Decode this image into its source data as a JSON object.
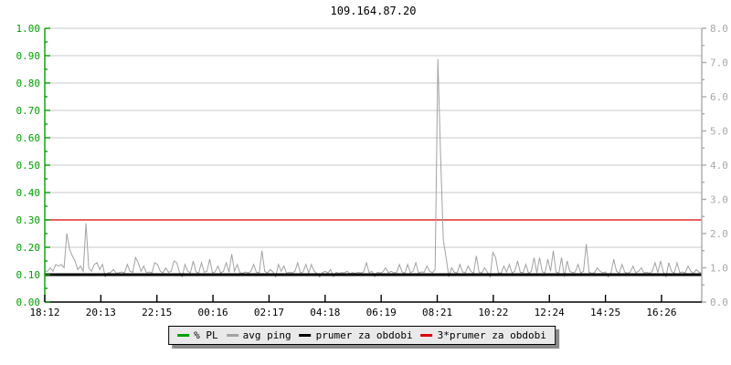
{
  "title": "109.164.87.20",
  "legend": {
    "items": [
      {
        "label": "% PL",
        "color": "#00a000"
      },
      {
        "label": "avg ping",
        "color": "#a2a2a2"
      },
      {
        "label": "prumer za obdobi",
        "color": "#000000"
      },
      {
        "label": "3*prumer za obdobi",
        "color": "#dd0000"
      }
    ]
  },
  "colors": {
    "grid": "#c8c8c8",
    "left_axis": "#00a000",
    "right_axis": "#aaaaaa",
    "right_labels": "#a8a8a8",
    "x_axis": "#000000",
    "background": "#ffffff"
  },
  "chart_data": {
    "type": "line",
    "title": "109.164.87.20",
    "grid": true,
    "legend_position": "bottom-center",
    "x_axis": {
      "tick_labels": [
        "18:12",
        "20:13",
        "22:15",
        "00:16",
        "02:17",
        "04:18",
        "06:19",
        "08:21",
        "10:22",
        "12:24",
        "14:25",
        "16:26"
      ]
    },
    "left_axis": {
      "series": "% PL",
      "min": 0,
      "max": 1,
      "tick_labels": [
        "1.00",
        "0.90",
        "0.80",
        "0.70",
        "0.60",
        "0.50",
        "0.40",
        "0.30",
        "0.20",
        "0.10",
        "0.00"
      ]
    },
    "right_axis": {
      "series": "avg ping",
      "min": 0,
      "max": 8,
      "tick_labels": [
        "8.0",
        "7.0",
        "6.0",
        "5.0",
        "4.0",
        "3.0",
        "2.0",
        "1.0",
        "0.0"
      ]
    },
    "series": [
      {
        "name": "% PL",
        "axis": "left",
        "color": "#00a000",
        "constant": 0
      },
      {
        "name": "avg ping",
        "axis": "right",
        "color": "#a2a2a2",
        "values": [
          0.9,
          0.9,
          1.0,
          0.9,
          1.1,
          1.05,
          1.1,
          1.0,
          2.0,
          1.55,
          1.35,
          1.2,
          0.95,
          1.05,
          0.9,
          2.3,
          1.0,
          0.9,
          1.1,
          1.15,
          0.95,
          1.1,
          0.74,
          0.85,
          0.87,
          0.95,
          0.84,
          0.86,
          0.88,
          0.85,
          1.1,
          0.9,
          0.87,
          1.3,
          1.15,
          0.9,
          1.05,
          0.86,
          0.88,
          0.85,
          1.15,
          1.1,
          0.9,
          0.86,
          1.0,
          0.87,
          0.9,
          1.2,
          1.15,
          0.88,
          0.74,
          1.1,
          0.9,
          0.86,
          1.2,
          0.88,
          0.85,
          1.15,
          0.87,
          0.9,
          1.25,
          0.86,
          0.88,
          1.05,
          0.85,
          0.9,
          1.15,
          0.87,
          1.4,
          0.9,
          1.1,
          0.86,
          0.84,
          0.88,
          0.85,
          0.9,
          1.1,
          0.87,
          0.86,
          1.5,
          0.9,
          0.85,
          0.95,
          0.88,
          0.74,
          1.1,
          0.9,
          1.05,
          0.84,
          0.87,
          0.85,
          0.9,
          1.15,
          0.86,
          0.88,
          1.1,
          0.85,
          1.1,
          0.9,
          0.84,
          0.73,
          0.86,
          0.9,
          0.85,
          0.95,
          0.74,
          0.87,
          0.84,
          0.86,
          0.85,
          0.9,
          0.83,
          0.86,
          0.84,
          0.87,
          0.85,
          0.88,
          1.15,
          0.86,
          0.9,
          0.74,
          0.87,
          0.85,
          0.88,
          1.0,
          0.86,
          0.9,
          0.85,
          0.87,
          1.1,
          0.88,
          0.84,
          1.1,
          0.86,
          0.9,
          1.15,
          0.85,
          0.88,
          0.87,
          1.05,
          0.9,
          0.86,
          0.95,
          7.1,
          4.25,
          1.8,
          1.3,
          0.74,
          1.0,
          0.87,
          0.85,
          1.1,
          0.88,
          0.86,
          1.05,
          0.9,
          0.84,
          1.35,
          0.87,
          0.85,
          1.0,
          0.88,
          0.74,
          1.45,
          1.3,
          0.86,
          0.84,
          1.05,
          0.88,
          1.1,
          0.85,
          0.9,
          1.2,
          0.87,
          0.86,
          1.1,
          0.84,
          0.9,
          1.3,
          0.85,
          1.3,
          0.88,
          0.86,
          1.25,
          0.9,
          1.5,
          0.87,
          0.85,
          1.3,
          0.74,
          1.2,
          0.9,
          0.86,
          0.88,
          1.1,
          0.85,
          0.9,
          1.7,
          0.87,
          0.84,
          0.86,
          1.0,
          0.9,
          0.85,
          0.88,
          0.74,
          0.86,
          1.25,
          0.9,
          0.85,
          1.1,
          0.87,
          0.84,
          0.88,
          1.05,
          0.86,
          0.9,
          1.0,
          0.85,
          0.87,
          0.84,
          0.9,
          1.15,
          0.86,
          1.2,
          0.88,
          0.74,
          1.15,
          0.9,
          0.84,
          1.15,
          0.86,
          0.88,
          0.85,
          1.05,
          0.9,
          0.84,
          0.95,
          0.87,
          0.85
        ]
      },
      {
        "name": "prumer za obdobi",
        "axis": "right",
        "color": "#000000",
        "constant": 0.8
      },
      {
        "name": "3*prumer za obdobi",
        "axis": "right",
        "color": "#dd0000",
        "constant": 2.4
      }
    ]
  }
}
